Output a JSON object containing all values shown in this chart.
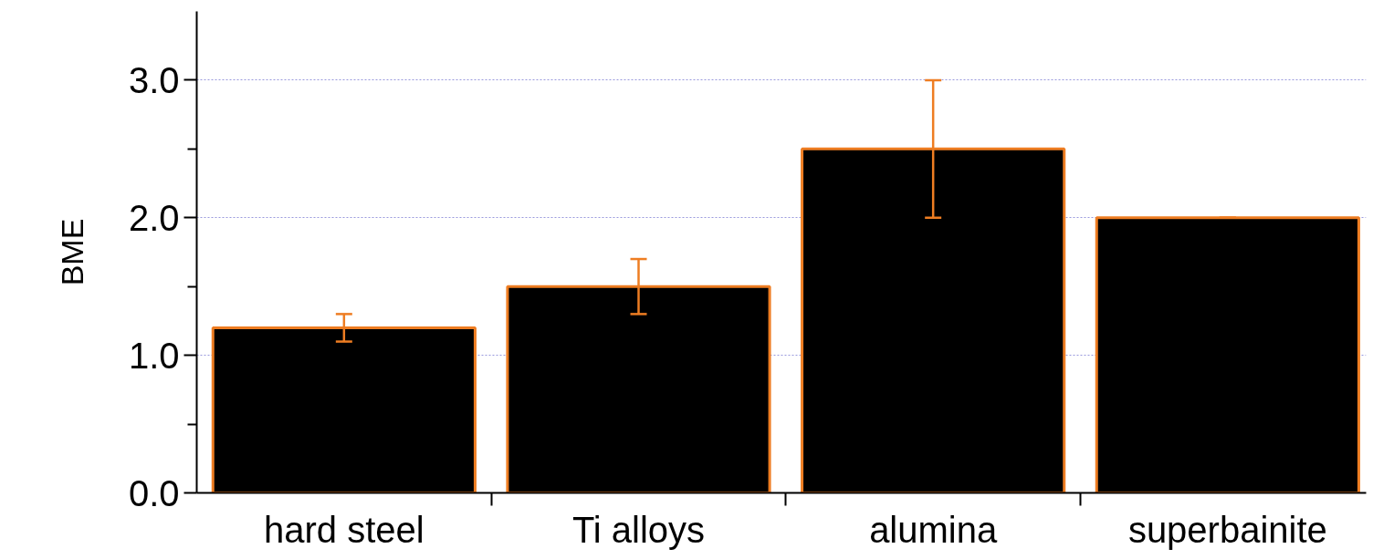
{
  "chart_data": {
    "type": "bar",
    "ylabel": "BME",
    "categories": [
      "hard steel",
      "Ti alloys",
      "alumina",
      "superbainite"
    ],
    "values": [
      1.2,
      1.5,
      2.5,
      2.0
    ],
    "errors": [
      [
        1.1,
        1.3
      ],
      [
        1.3,
        1.7
      ],
      [
        2.0,
        3.0
      ],
      0
    ],
    "color": "#000000",
    "ylim": [
      0,
      3.5
    ],
    "yticks": [
      {
        "value": 0,
        "label": "0.0"
      },
      {
        "value": 0.5,
        "label": null
      },
      {
        "value": 1,
        "label": "1.0"
      },
      {
        "value": 1.5,
        "label": null
      },
      {
        "value": 2,
        "label": "2.0"
      },
      {
        "value": 2.5,
        "label": null
      },
      {
        "value": 3,
        "label": "3.0"
      }
    ],
    "grid": "y"
  }
}
